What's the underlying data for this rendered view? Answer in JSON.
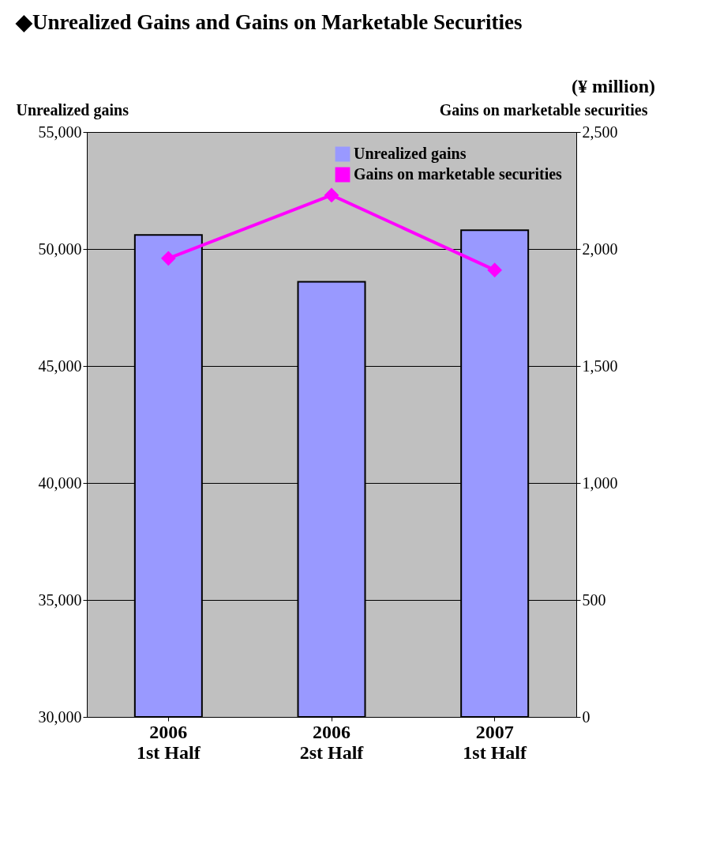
{
  "chart_data": {
    "type": "bar",
    "title": "◆Unrealized Gains and Gains on Marketable Securities",
    "annotations": [
      "(¥ million)"
    ],
    "categories": [
      "2006\n1st Half",
      "2006\n2st Half",
      "2007\n1st Half"
    ],
    "ylabel": "Unrealized gains",
    "y2label": "Gains on marketable securities",
    "series": [
      {
        "name": "Unrealized gains",
        "type": "bar",
        "color": "#9999ff",
        "values": [
          50600,
          48600,
          50800
        ]
      },
      {
        "name": "Gains on marketable securities",
        "type": "line",
        "axis": "y2",
        "color": "#ff00ff",
        "marker": "diamond",
        "values": [
          1960,
          2230,
          1910
        ]
      }
    ],
    "ylim": [
      30000,
      55000
    ],
    "yticks": [
      {
        "value": 30000,
        "label": "30,000"
      },
      {
        "value": 35000,
        "label": "35,000"
      },
      {
        "value": 40000,
        "label": "40,000"
      },
      {
        "value": 45000,
        "label": "45,000"
      },
      {
        "value": 50000,
        "label": "50,000"
      },
      {
        "value": 55000,
        "label": "55,000"
      }
    ],
    "y2lim": [
      0,
      2500
    ],
    "y2ticks": [
      0,
      500,
      {
        "value": 1000,
        "label": "1,000"
      },
      {
        "value": 1500,
        "label": "1,500"
      },
      {
        "value": 2000,
        "label": "2,000"
      },
      {
        "value": 2500,
        "label": "2,500"
      }
    ],
    "grid": "y",
    "legend": "top right"
  }
}
